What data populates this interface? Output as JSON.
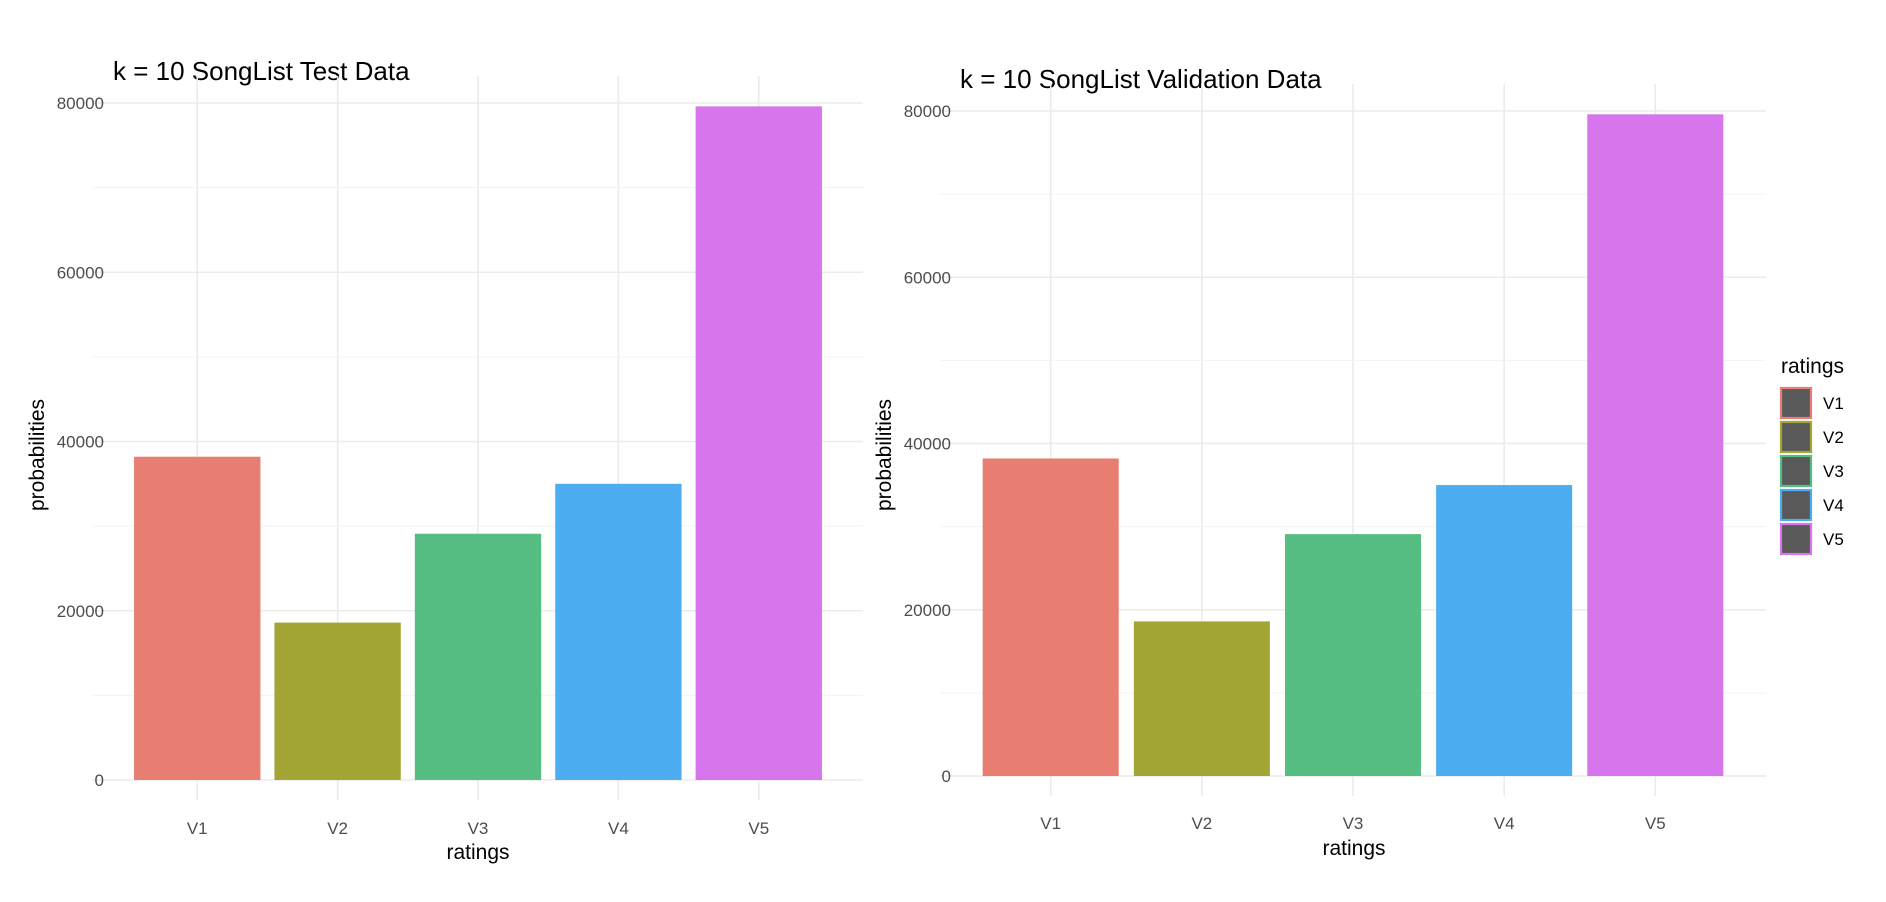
{
  "chart_data": [
    {
      "type": "bar",
      "title": "k = 10 SongList Test Data",
      "xlabel": "ratings",
      "ylabel": "probabilities",
      "categories": [
        "V1",
        "V2",
        "V3",
        "V4",
        "V5"
      ],
      "values": [
        38200,
        18600,
        29100,
        35000,
        79600
      ],
      "ylim": [
        0,
        80000
      ],
      "yticks": [
        0,
        20000,
        40000,
        60000,
        80000
      ],
      "ytick_labels": [
        "0",
        "20000",
        "40000",
        "60000",
        "80000"
      ],
      "grid": true
    },
    {
      "type": "bar",
      "title": "k = 10 SongList Validation Data",
      "xlabel": "ratings",
      "ylabel": "probabilities",
      "categories": [
        "V1",
        "V2",
        "V3",
        "V4",
        "V5"
      ],
      "values": [
        38200,
        18600,
        29100,
        35000,
        79600
      ],
      "ylim": [
        0,
        80000
      ],
      "yticks": [
        0,
        20000,
        40000,
        60000,
        80000
      ],
      "ytick_labels": [
        "0",
        "20000",
        "40000",
        "60000",
        "80000"
      ],
      "grid": true
    }
  ],
  "legend": {
    "title": "ratings",
    "placement": "right",
    "items": [
      {
        "label": "V1",
        "color": "#e87d72"
      },
      {
        "label": "V2",
        "color": "#a3a535"
      },
      {
        "label": "V3",
        "color": "#56bd83"
      },
      {
        "label": "V4",
        "color": "#4caef0"
      },
      {
        "label": "V5",
        "color": "#d675ec"
      }
    ],
    "key_fill": "#595959"
  }
}
